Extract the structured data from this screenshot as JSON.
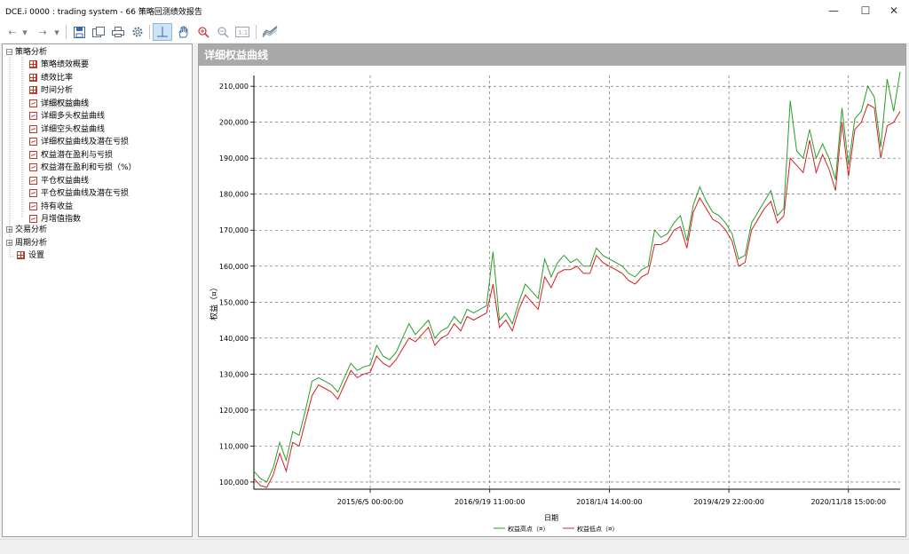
{
  "window": {
    "title": "DCE.i 0000 : trading system - 66 策略回测绩效报告",
    "minimize": "—",
    "maximize": "☐",
    "close": "✕"
  },
  "toolbar": {
    "icons": [
      "back-icon",
      "dropdown-icon",
      "forward-icon",
      "dropdown-icon",
      "save-icon",
      "copy-icon",
      "print-icon",
      "settings-icon",
      "crosshair-icon",
      "hand-icon",
      "zoom-in-icon",
      "zoom-out-icon",
      "zoom-reset-icon",
      "chart-style-icon"
    ]
  },
  "tree": {
    "root1": "策略分析",
    "items": [
      {
        "label": "策略绩效概要",
        "icon": "grid"
      },
      {
        "label": "绩效比率",
        "icon": "grid"
      },
      {
        "label": "时间分析",
        "icon": "grid"
      },
      {
        "label": "详细权益曲线",
        "icon": "line",
        "selected": true
      },
      {
        "label": "详细多头权益曲线",
        "icon": "line"
      },
      {
        "label": "详细空头权益曲线",
        "icon": "line"
      },
      {
        "label": "详细权益曲线及潜在亏损",
        "icon": "line"
      },
      {
        "label": "权益潜在盈利与亏损",
        "icon": "line"
      },
      {
        "label": "权益潜在盈利和亏损（%）",
        "icon": "line"
      },
      {
        "label": "平仓权益曲线",
        "icon": "line"
      },
      {
        "label": "平仓权益曲线及潜在亏损",
        "icon": "line"
      },
      {
        "label": "持有收益",
        "icon": "line"
      },
      {
        "label": "月增值指数",
        "icon": "line"
      }
    ],
    "root2": "交易分析",
    "root3": "周期分析",
    "settings": "设置"
  },
  "chart_header": "详细权益曲线",
  "chart_data": {
    "type": "line",
    "ylabel": "权益（¤）",
    "xlabel": "日期",
    "ylim": [
      98000,
      213000
    ],
    "yticks": [
      "100,000",
      "110,000",
      "120,000",
      "130,000",
      "140,000",
      "150,000",
      "160,000",
      "170,000",
      "180,000",
      "190,000",
      "200,000",
      "210,000"
    ],
    "ytick_values": [
      100000,
      110000,
      120000,
      130000,
      140000,
      150000,
      160000,
      170000,
      180000,
      190000,
      200000,
      210000
    ],
    "xticks": [
      "2015/6/5 00:00:00",
      "2016/9/19 11:00:00",
      "2018/1/4 14:00:00",
      "2019/4/29 22:00:00",
      "2020/11/18 15:00:00"
    ],
    "xtick_positions": [
      0.18,
      0.365,
      0.55,
      0.735,
      0.92
    ],
    "grid": true,
    "legend_position": "bottom",
    "series": [
      {
        "name": "权益高点（¤）",
        "color": "#2a9d2a"
      },
      {
        "name": "权益低点（¤）",
        "color": "#d42020"
      }
    ],
    "x": [
      0,
      0.01,
      0.02,
      0.03,
      0.04,
      0.05,
      0.06,
      0.07,
      0.08,
      0.09,
      0.1,
      0.11,
      0.12,
      0.13,
      0.14,
      0.15,
      0.16,
      0.17,
      0.18,
      0.19,
      0.2,
      0.21,
      0.22,
      0.23,
      0.24,
      0.25,
      0.26,
      0.27,
      0.28,
      0.29,
      0.3,
      0.31,
      0.32,
      0.33,
      0.34,
      0.35,
      0.36,
      0.37,
      0.38,
      0.39,
      0.4,
      0.41,
      0.42,
      0.43,
      0.44,
      0.45,
      0.46,
      0.47,
      0.48,
      0.49,
      0.5,
      0.51,
      0.52,
      0.53,
      0.54,
      0.55,
      0.56,
      0.57,
      0.58,
      0.59,
      0.6,
      0.61,
      0.62,
      0.63,
      0.64,
      0.65,
      0.66,
      0.67,
      0.68,
      0.69,
      0.7,
      0.71,
      0.72,
      0.73,
      0.74,
      0.75,
      0.76,
      0.77,
      0.78,
      0.79,
      0.8,
      0.81,
      0.82,
      0.83,
      0.84,
      0.85,
      0.86,
      0.87,
      0.88,
      0.89,
      0.9,
      0.91,
      0.92,
      0.93,
      0.94,
      0.95,
      0.96,
      0.97,
      0.98,
      0.99,
      1.0
    ],
    "low": [
      101000,
      99000,
      98500,
      102000,
      108000,
      103000,
      111000,
      110000,
      117000,
      124000,
      127000,
      126000,
      125000,
      123000,
      127000,
      131000,
      129000,
      130000,
      130500,
      135000,
      133000,
      132000,
      134000,
      137000,
      140000,
      139000,
      141000,
      143000,
      138000,
      140000,
      141000,
      144000,
      142000,
      146000,
      145000,
      146000,
      147000,
      155000,
      143000,
      145000,
      142000,
      148000,
      152000,
      150000,
      148000,
      157000,
      154000,
      158000,
      159000,
      159000,
      160000,
      158000,
      158000,
      163000,
      161000,
      160000,
      159000,
      158000,
      156000,
      155000,
      157000,
      158000,
      166000,
      166000,
      167000,
      170000,
      171000,
      165000,
      175000,
      179000,
      176000,
      173000,
      172000,
      170000,
      167000,
      160000,
      161000,
      170000,
      173000,
      176000,
      178000,
      172000,
      174000,
      190000,
      188000,
      186000,
      195000,
      186000,
      191000,
      187000,
      181000,
      200000,
      185000,
      198000,
      200000,
      205000,
      204000,
      190000,
      199000,
      200000,
      203000
    ],
    "high": [
      103000,
      101000,
      100000,
      104000,
      111000,
      106000,
      114000,
      113000,
      120000,
      128000,
      129000,
      128000,
      127000,
      125000,
      129000,
      133000,
      131000,
      132000,
      132500,
      138000,
      135000,
      134000,
      136000,
      140000,
      144000,
      141000,
      143000,
      145000,
      140000,
      142000,
      143000,
      146000,
      144000,
      148000,
      147000,
      148000,
      149000,
      164000,
      145000,
      147000,
      144000,
      150000,
      155000,
      153000,
      151000,
      162000,
      157000,
      161000,
      163000,
      161000,
      162000,
      160000,
      160000,
      165000,
      163000,
      162000,
      161000,
      160000,
      158000,
      157000,
      159000,
      160000,
      170000,
      168000,
      169000,
      172000,
      174000,
      167000,
      177000,
      182000,
      178000,
      175000,
      174000,
      172000,
      169000,
      162000,
      163000,
      172000,
      175000,
      178000,
      181000,
      174000,
      176000,
      206000,
      192000,
      190000,
      198000,
      190000,
      194000,
      190000,
      184000,
      204000,
      188000,
      201000,
      203000,
      210000,
      207000,
      193000,
      212000,
      203000,
      214000
    ]
  },
  "chart_labels": {
    "ytitle": "权益（¤）",
    "xtitle": "日期",
    "legend_high": "权益高点（¤）",
    "legend_low": "权益低点（¤）"
  }
}
